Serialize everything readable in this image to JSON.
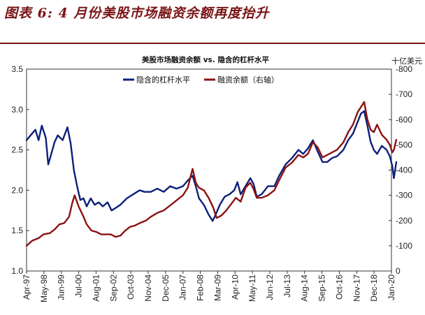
{
  "figure_title": "图表 6: 4 月份美股市场融资余额再度抬升",
  "chart_data": {
    "type": "line",
    "title": "美股市场融资余额 vs. 隐含的杠杆水平",
    "xlabel": "",
    "ylabel": "",
    "y2label": "十亿美元",
    "x_tick_labels": [
      "Apr-97",
      "May-98",
      "Jun-99",
      "Jul-00",
      "Aug-01",
      "Sep-02",
      "Oct-03",
      "Nov-04",
      "Dec-05",
      "Jan-07",
      "Feb-08",
      "Mar-09",
      "Apr-10",
      "May-11",
      "Jun-12",
      "Jul-13",
      "Aug-14",
      "Sep-15",
      "Oct-16",
      "Nov-17",
      "Dec-18",
      "Jan-20"
    ],
    "ylim": [
      1.0,
      3.5
    ],
    "y_ticks": [
      1.0,
      1.5,
      2.0,
      2.5,
      3.0,
      3.5
    ],
    "y_tick_labels": [
      "1.0",
      "1.5",
      "2.0",
      "2.5",
      "3.0",
      "3.5"
    ],
    "y2lim": [
      0,
      -800
    ],
    "y2_ticks": [
      0,
      -100,
      -200,
      -300,
      -400,
      -500,
      -600,
      -700,
      -800
    ],
    "y2_tick_labels": [
      "0",
      "-100",
      "-200",
      "-300",
      "-400",
      "-500",
      "-600",
      "-700",
      "-800"
    ],
    "legend_position": "top-left",
    "grid": false,
    "series": [
      {
        "name": "隐含的杠杆水平",
        "axis": "left",
        "color": "#0d1f7a",
        "x": [
          1997.25,
          1997.5,
          1997.8,
          1998.0,
          1998.2,
          1998.45,
          1998.6,
          1998.75,
          1999.0,
          1999.2,
          1999.5,
          1999.8,
          2000.0,
          2000.2,
          2000.4,
          2000.6,
          2000.8,
          2001.0,
          2001.25,
          2001.5,
          2001.75,
          2002.0,
          2002.3,
          2002.55,
          2002.8,
          2003.1,
          2003.5,
          2003.9,
          2004.3,
          2004.6,
          2005.0,
          2005.4,
          2005.8,
          2006.2,
          2006.6,
          2007.0,
          2007.3,
          2007.6,
          2007.8,
          2008.0,
          2008.3,
          2008.6,
          2008.85,
          2009.0,
          2009.3,
          2009.6,
          2009.9,
          2010.2,
          2010.4,
          2010.6,
          2010.9,
          2011.2,
          2011.4,
          2011.6,
          2011.9,
          2012.3,
          2012.7,
          2013.0,
          2013.4,
          2013.8,
          2014.2,
          2014.5,
          2014.8,
          2015.1,
          2015.4,
          2015.7,
          2016.0,
          2016.3,
          2016.6,
          2017.0,
          2017.3,
          2017.6,
          2017.9,
          2018.1,
          2018.3,
          2018.5,
          2018.7,
          2018.9,
          2019.1,
          2019.4,
          2019.7,
          2019.9,
          2020.05,
          2020.15,
          2020.3
        ],
        "values": [
          2.62,
          2.68,
          2.75,
          2.62,
          2.8,
          2.65,
          2.32,
          2.42,
          2.6,
          2.68,
          2.62,
          2.78,
          2.58,
          2.25,
          2.05,
          1.88,
          1.9,
          1.8,
          1.9,
          1.82,
          1.85,
          1.8,
          1.85,
          1.75,
          1.78,
          1.82,
          1.9,
          1.95,
          2.0,
          1.98,
          1.98,
          2.02,
          1.98,
          2.05,
          2.02,
          2.05,
          2.12,
          2.18,
          2.05,
          1.9,
          1.82,
          1.7,
          1.62,
          1.68,
          1.82,
          1.92,
          1.95,
          2.0,
          2.1,
          1.95,
          2.05,
          2.15,
          2.08,
          1.92,
          1.95,
          2.05,
          2.05,
          2.18,
          2.32,
          2.4,
          2.5,
          2.45,
          2.52,
          2.62,
          2.48,
          2.35,
          2.35,
          2.4,
          2.42,
          2.5,
          2.62,
          2.7,
          2.85,
          2.95,
          2.98,
          2.8,
          2.6,
          2.5,
          2.45,
          2.55,
          2.5,
          2.42,
          2.3,
          2.15,
          2.35
        ]
      },
      {
        "name": "融资余额（右轴）",
        "axis": "right",
        "color": "#8b1212",
        "x": [
          1997.25,
          1997.6,
          1998.0,
          1998.3,
          1998.7,
          1999.0,
          1999.3,
          1999.6,
          1999.9,
          2000.1,
          2000.25,
          2000.5,
          2000.8,
          2001.0,
          2001.3,
          2001.6,
          2001.9,
          2002.2,
          2002.5,
          2002.8,
          2003.1,
          2003.4,
          2003.7,
          2004.0,
          2004.3,
          2004.7,
          2005.0,
          2005.4,
          2005.8,
          2006.2,
          2006.6,
          2007.0,
          2007.3,
          2007.5,
          2007.6,
          2007.8,
          2008.0,
          2008.3,
          2008.6,
          2008.9,
          2009.1,
          2009.4,
          2009.7,
          2010.0,
          2010.3,
          2010.6,
          2010.9,
          2011.2,
          2011.4,
          2011.6,
          2011.9,
          2012.3,
          2012.7,
          2013.0,
          2013.4,
          2013.8,
          2014.2,
          2014.5,
          2014.8,
          2015.1,
          2015.4,
          2015.7,
          2016.0,
          2016.3,
          2016.6,
          2017.0,
          2017.3,
          2017.6,
          2017.9,
          2018.1,
          2018.3,
          2018.5,
          2018.7,
          2018.9,
          2019.1,
          2019.4,
          2019.7,
          2019.9,
          2020.05,
          2020.15,
          2020.3
        ],
        "values": [
          -100,
          -120,
          -130,
          -145,
          -150,
          -165,
          -185,
          -190,
          -215,
          -270,
          -300,
          -255,
          -215,
          -185,
          -160,
          -155,
          -145,
          -145,
          -145,
          -135,
          -140,
          -160,
          -175,
          -180,
          -190,
          -200,
          -215,
          -230,
          -240,
          -260,
          -280,
          -300,
          -330,
          -380,
          -405,
          -350,
          -330,
          -320,
          -290,
          -250,
          -210,
          -220,
          -240,
          -265,
          -290,
          -275,
          -330,
          -350,
          -325,
          -290,
          -290,
          -300,
          -320,
          -360,
          -410,
          -430,
          -460,
          -450,
          -465,
          -510,
          -490,
          -450,
          -460,
          -470,
          -480,
          -510,
          -550,
          -580,
          -630,
          -650,
          -670,
          -600,
          -560,
          -550,
          -580,
          -540,
          -520,
          -500,
          -470,
          -480,
          -520
        ]
      }
    ]
  }
}
